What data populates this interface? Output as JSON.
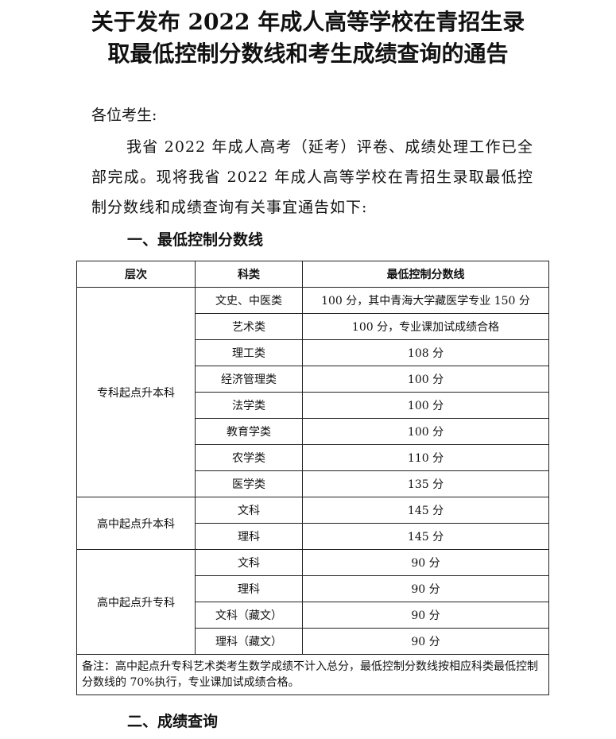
{
  "header": {
    "title_lines": [
      "关于发布 2022 年成人高等学校在青招生录",
      "取最低控制分数线和考生成绩查询的通告"
    ]
  },
  "salutation": "各位考生:",
  "intro": "我省 2022 年成人高考（延考）评卷、成绩处理工作已全部完成。现将我省 2022 年成人高等学校在青招生录取最低控制分数线和成绩查询有关事宜通告如下:",
  "section1": "一、最低控制分数线",
  "table": {
    "columns": [
      "层次",
      "科类",
      "最低控制分数线"
    ],
    "groups": [
      {
        "level": "专科起点升本科",
        "rows": [
          [
            "文史、中医类",
            "100 分，其中青海大学藏医学专业 150 分"
          ],
          [
            "艺术类",
            "100 分，专业课加试成绩合格"
          ],
          [
            "理工类",
            "108 分"
          ],
          [
            "经济管理类",
            "100 分"
          ],
          [
            "法学类",
            "100 分"
          ],
          [
            "教育学类",
            "100 分"
          ],
          [
            "农学类",
            "110 分"
          ],
          [
            "医学类",
            "135 分"
          ]
        ]
      },
      {
        "level": "高中起点升本科",
        "rows": [
          [
            "文科",
            "145 分"
          ],
          [
            "理科",
            "145 分"
          ]
        ]
      },
      {
        "level": "高中起点升专科",
        "rows": [
          [
            "文科",
            "90 分"
          ],
          [
            "理科",
            "90 分"
          ],
          [
            "文科（藏文）",
            "90 分"
          ],
          [
            "理科（藏文）",
            "90 分"
          ]
        ]
      }
    ],
    "note": "备注：高中起点升专科艺术类考生数学成绩不计入总分，最低控制分数线按相应科类最低控制分数线的 70%执行，专业课加试成绩合格。"
  },
  "section2": "二、成绩查询"
}
